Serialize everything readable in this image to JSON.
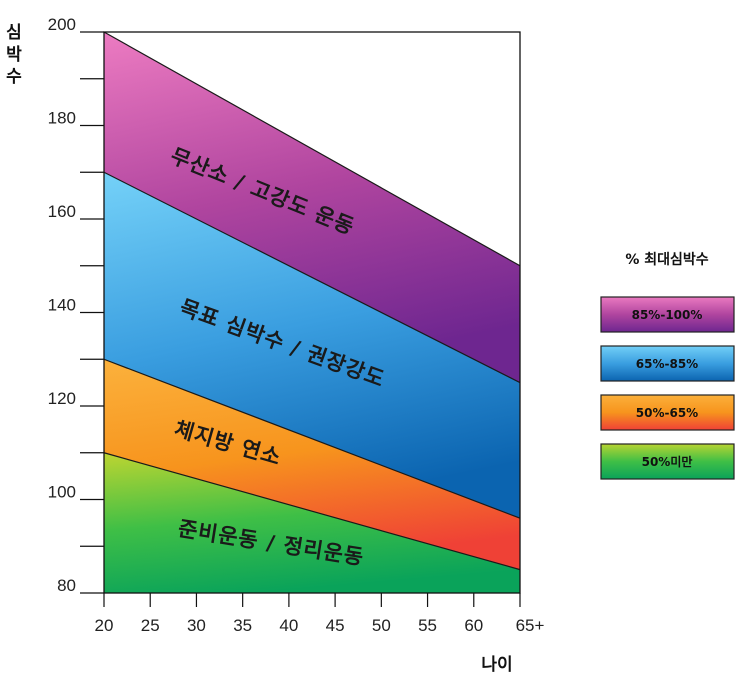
{
  "chart_data": {
    "type": "area",
    "ylabel": "심박수",
    "xlabel": "나이",
    "x": [
      20,
      25,
      30,
      35,
      40,
      45,
      50,
      55,
      60,
      65
    ],
    "x_tick_labels": [
      "20",
      "25",
      "30",
      "35",
      "40",
      "45",
      "50",
      "55",
      "60",
      "65+"
    ],
    "xlim": [
      20,
      65
    ],
    "ylim": [
      80,
      200
    ],
    "y_ticks": [
      80,
      100,
      120,
      140,
      160,
      180,
      200
    ],
    "y_tick_labels": [
      "80",
      "100",
      "120",
      "140",
      "160",
      "180",
      "200"
    ],
    "grid": false,
    "legend_title": "% 최대심박수",
    "legend_position": "right",
    "bands": [
      {
        "label": "준비운동 / 정리운동",
        "legend": "50%미만",
        "lower": [
          80,
          80
        ],
        "upper": [
          110,
          85
        ],
        "colors": [
          "#b8d432",
          "#3fbf46",
          "#0aa35a"
        ]
      },
      {
        "label": "체지방 연소",
        "legend": "50%-65%",
        "lower": [
          110,
          85
        ],
        "upper": [
          130,
          96
        ],
        "colors": [
          "#fbb03b",
          "#f7941d",
          "#ef4136"
        ]
      },
      {
        "label": "목표 심박수 / 권장강도",
        "legend": "65%-85%",
        "lower": [
          130,
          96
        ],
        "upper": [
          170,
          125
        ],
        "colors": [
          "#72cff7",
          "#3a9ee0",
          "#0b64b0"
        ]
      },
      {
        "label": "무산소 / 고강도 운동",
        "legend": "85%-100%",
        "lower": [
          170,
          125
        ],
        "upper": [
          200,
          150
        ],
        "colors": [
          "#ea79c0",
          "#b0459f",
          "#6e2690"
        ]
      }
    ]
  }
}
